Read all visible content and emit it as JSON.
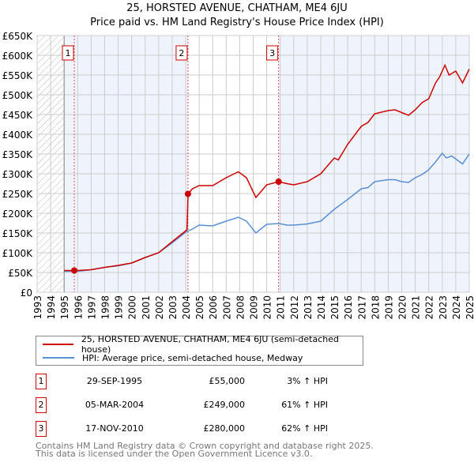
{
  "chart_data": {
    "type": "line",
    "title": "25, HORSTED AVENUE, CHATHAM, ME4 6JU",
    "subtitle": "Price paid vs. HM Land Registry's House Price Index (HPI)",
    "xlim": [
      1993,
      2025
    ],
    "ylim": [
      0,
      650000
    ],
    "x_ticks": [
      "1993",
      "1994",
      "1995",
      "1996",
      "1997",
      "1998",
      "1999",
      "2000",
      "2001",
      "2002",
      "2003",
      "2004",
      "2005",
      "2006",
      "2007",
      "2008",
      "2009",
      "2010",
      "2011",
      "2012",
      "2013",
      "2014",
      "2015",
      "2016",
      "2017",
      "2018",
      "2019",
      "2020",
      "2021",
      "2022",
      "2023",
      "2024",
      "2025"
    ],
    "y_ticks": [
      {
        "v": 0,
        "l": "£0"
      },
      {
        "v": 50000,
        "l": "£50K"
      },
      {
        "v": 100000,
        "l": "£100K"
      },
      {
        "v": 150000,
        "l": "£150K"
      },
      {
        "v": 200000,
        "l": "£200K"
      },
      {
        "v": 250000,
        "l": "£250K"
      },
      {
        "v": 300000,
        "l": "£300K"
      },
      {
        "v": 350000,
        "l": "£350K"
      },
      {
        "v": 400000,
        "l": "£400K"
      },
      {
        "v": 450000,
        "l": "£450K"
      },
      {
        "v": 500000,
        "l": "£500K"
      },
      {
        "v": 550000,
        "l": "£550K"
      },
      {
        "v": 600000,
        "l": "£600K"
      },
      {
        "v": 650000,
        "l": "£650K"
      }
    ],
    "grid": true,
    "series": [
      {
        "name": "25, HORSTED AVENUE, CHATHAM, ME4 6JU (semi-detached house)",
        "color": "#cc0000",
        "x": [
          1995,
          1995.75,
          1996,
          1997,
          1998,
          1999,
          2000,
          2001,
          2002,
          2003,
          2004.1,
          2004.18,
          2004.5,
          2005,
          2006,
          2007,
          2007.9,
          2008.5,
          2009.2,
          2010,
          2010.88,
          2011.5,
          2012,
          2013,
          2014,
          2015,
          2015.3,
          2016,
          2017,
          2017.5,
          2018,
          2019,
          2019.5,
          2020,
          2020.5,
          2021,
          2021.5,
          2022,
          2022.5,
          2022.8,
          2023.2,
          2023.5,
          2024,
          2024.5,
          2025
        ],
        "y": [
          55000,
          55000,
          55000,
          57000,
          63000,
          68000,
          74000,
          88000,
          100000,
          128000,
          158000,
          249000,
          262000,
          270000,
          270000,
          290000,
          305000,
          290000,
          240000,
          272000,
          280000,
          275000,
          272000,
          280000,
          300000,
          340000,
          335000,
          375000,
          420000,
          430000,
          452000,
          460000,
          462000,
          455000,
          448000,
          462000,
          480000,
          490000,
          530000,
          545000,
          575000,
          550000,
          560000,
          530000,
          565000
        ]
      },
      {
        "name": "HPI: Average price, semi-detached house, Medway",
        "color": "#5b8fd4",
        "x": [
          1995,
          1996,
          1997,
          1998,
          1999,
          2000,
          2001,
          2002,
          2003,
          2004,
          2004.5,
          2005,
          2006,
          2007,
          2007.9,
          2008.5,
          2009.2,
          2010,
          2010.9,
          2011.5,
          2012,
          2013,
          2014,
          2015,
          2016,
          2017,
          2017.5,
          2018,
          2019,
          2019.5,
          2020,
          2020.5,
          2021,
          2021.5,
          2022,
          2022.5,
          2023,
          2023.3,
          2023.7,
          2024.5,
          2025
        ],
        "y": [
          53000,
          53000,
          57000,
          63000,
          67000,
          74000,
          88000,
          100000,
          125000,
          152000,
          160000,
          170000,
          168000,
          180000,
          190000,
          180000,
          150000,
          172000,
          174000,
          170000,
          170000,
          173000,
          180000,
          210000,
          235000,
          262000,
          265000,
          280000,
          285000,
          285000,
          280000,
          278000,
          290000,
          298000,
          310000,
          330000,
          352000,
          340000,
          345000,
          325000,
          350000
        ]
      }
    ],
    "sales": [
      {
        "label": "1",
        "x": 1995.75,
        "y": 55000,
        "date": "29-SEP-1995",
        "price": "£55,000",
        "hpi": "3% ↑ HPI"
      },
      {
        "label": "2",
        "x": 2004.17,
        "y": 249000,
        "date": "05-MAR-2004",
        "price": "£249,000",
        "hpi": "61% ↑ HPI"
      },
      {
        "label": "3",
        "x": 2010.88,
        "y": 280000,
        "date": "17-NOV-2010",
        "price": "£280,000",
        "hpi": "62% ↑ HPI"
      }
    ],
    "legend_placement": "below"
  },
  "footer": {
    "line1": "Contains HM Land Registry data © Crown copyright and database right 2025.",
    "line2": "This data is licensed under the Open Government Licence v3.0."
  }
}
